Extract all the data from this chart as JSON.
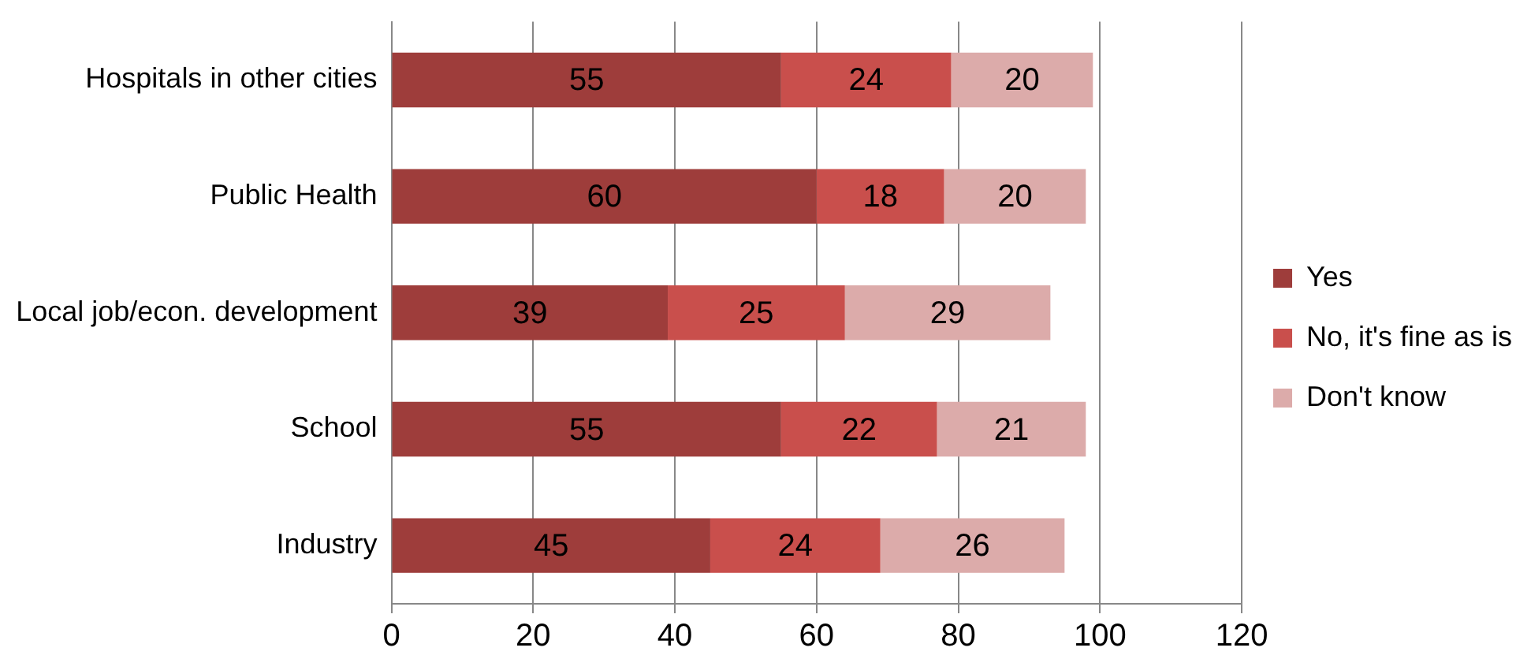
{
  "chart_data": {
    "type": "bar",
    "orientation": "horizontal",
    "stacked": true,
    "categories": [
      "Hospitals in other cities",
      "Public Health",
      "Local job/econ. development",
      "School",
      "Industry"
    ],
    "series": [
      {
        "name": "Yes",
        "color": "#9e3d3b",
        "values": [
          55,
          60,
          39,
          55,
          45
        ]
      },
      {
        "name": "No, it's fine as is",
        "color": "#c94f4c",
        "values": [
          24,
          18,
          25,
          22,
          24
        ]
      },
      {
        "name": "Don't know",
        "color": "#dcabaa",
        "values": [
          20,
          20,
          29,
          21,
          26
        ]
      }
    ],
    "xlim": [
      0,
      120
    ],
    "xticks": [
      0,
      20,
      40,
      60,
      80,
      100,
      120
    ],
    "grid": "x",
    "legend": "right",
    "data_labels": true
  }
}
